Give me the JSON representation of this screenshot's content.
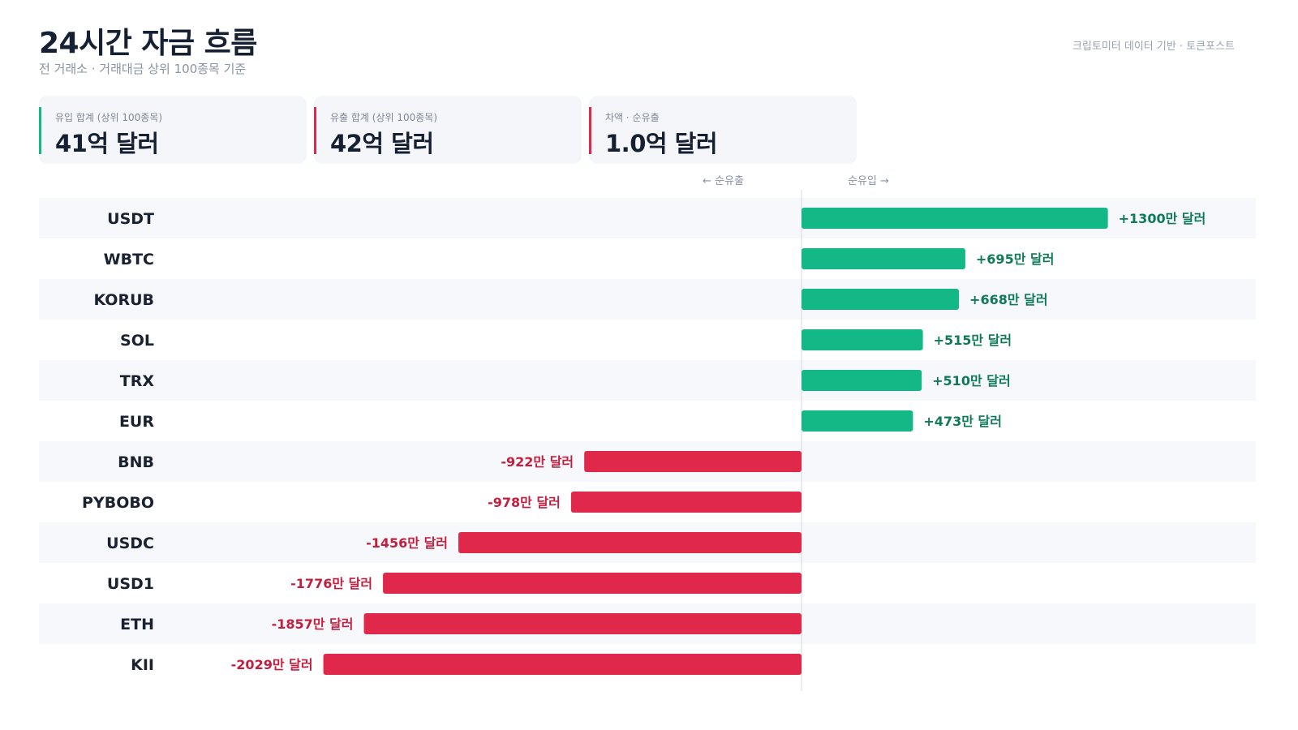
{
  "header": {
    "title": "24시간 자금 흐름",
    "subtitle": "전 거래소 · 거래대금 상위 100종목 기준",
    "source": "크립토미터 데이터 기반 · 토큰포스트"
  },
  "summary": [
    {
      "label": "유입 합계 (상위 100종목)",
      "value": "41억 달러",
      "color": "#13b886"
    },
    {
      "label": "유출 합계 (상위 100종목)",
      "value": "42억 달러",
      "color": "#e0284a"
    },
    {
      "label": "차액 · 순유출",
      "value": "1.0억 달러",
      "color": "#e0284a"
    }
  ],
  "direction": {
    "outflow": "← 순유출",
    "inflow": "순유입 →"
  },
  "colors": {
    "inflow_bar": "#13b886",
    "inflow_text": "#0e7a58",
    "outflow_bar": "#e0284a",
    "outflow_text": "#c41e3e",
    "row_stripe": "#f7f8fb",
    "axis": "#d5d9e0"
  },
  "chart_data": {
    "type": "bar",
    "orientation": "horizontal",
    "unit": "만 달러",
    "categories": [
      "USDT",
      "WBTC",
      "KORUB",
      "SOL",
      "TRX",
      "EUR",
      "BNB",
      "PYBOBO",
      "USDC",
      "USD1",
      "ETH",
      "KII"
    ],
    "values": [
      1300,
      695,
      668,
      515,
      510,
      473,
      -922,
      -978,
      -1456,
      -1776,
      -1857,
      -2029
    ],
    "value_labels": [
      "+1300만 달러",
      "+695만 달러",
      "+668만 달러",
      "+515만 달러",
      "+510만 달러",
      "+473만 달러",
      "-922만 달러",
      "-978만 달러",
      "-1456만 달러",
      "-1776만 달러",
      "-1857만 달러",
      "-2029만 달러"
    ]
  }
}
